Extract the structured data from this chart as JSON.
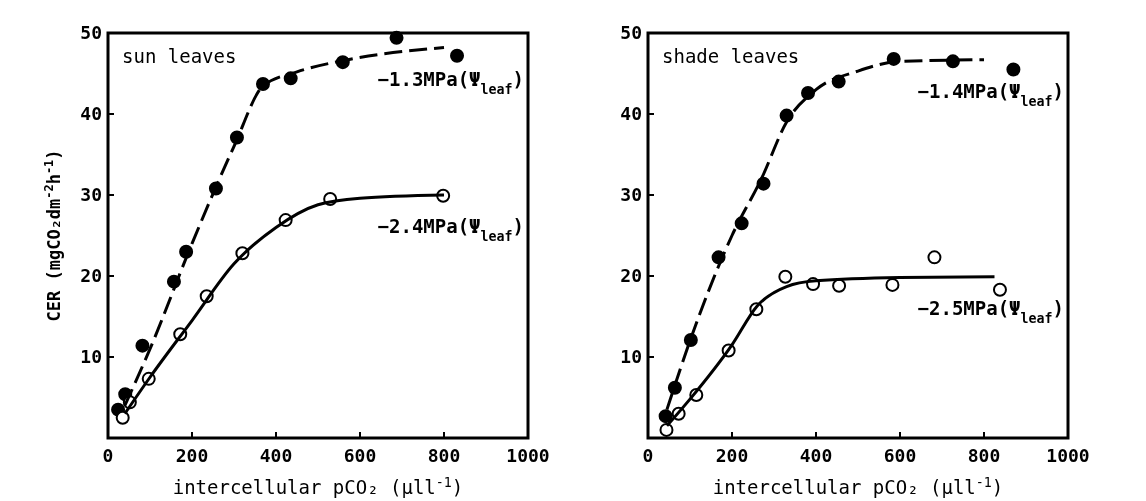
{
  "chart_data": [
    {
      "type": "scatter",
      "title": "sun leaves",
      "xlabel": "intercellular pCO₂ (μll$^{-1}$)",
      "ylabel": "CER (mgCO₂dm$^{-2}$h$^{-1}$)",
      "xlim": [
        0,
        1000
      ],
      "xticks": [
        0,
        200,
        400,
        600,
        800,
        1000
      ],
      "ylim": [
        0,
        50
      ],
      "yticks": [
        10,
        20,
        30,
        40,
        50
      ],
      "grid": false,
      "legend": false,
      "series": [
        {
          "marker": "circle",
          "color": "#000000",
          "x": [
            24,
            41,
            82,
            157,
            186,
            257,
            307,
            369,
            435,
            559,
            687,
            831
          ],
          "values": [
            3.5,
            5.4,
            11.4,
            19.3,
            23.0,
            30.8,
            37.1,
            43.7,
            44.4,
            46.4,
            49.4,
            47.2
          ]
        },
        {
          "marker": "circle",
          "color": "#ffffff",
          "x": [
            35,
            52,
            97,
            172,
            235,
            320,
            423,
            529,
            798
          ],
          "values": [
            2.5,
            4.4,
            7.3,
            12.8,
            17.5,
            22.8,
            26.9,
            29.5,
            29.9
          ]
        },
        {
          "type": "line",
          "name": "−1.3MPa(Ψ$_{leaf}$)",
          "color": "#000000",
          "line_style": "dashed",
          "x": [
            40,
            100,
            200,
            300,
            370,
            450,
            560,
            800
          ],
          "values": [
            4,
            11,
            24,
            36,
            43.5,
            45.2,
            46.6,
            48.2
          ]
        },
        {
          "type": "line",
          "name": "−2.4MPa(Ψ$_{leaf}$)",
          "color": "#000000",
          "line_style": "solid",
          "x": [
            40,
            100,
            200,
            300,
            400,
            500,
            600,
            800
          ],
          "values": [
            3,
            7.5,
            14.5,
            21.5,
            26,
            28.8,
            29.6,
            30.0
          ]
        }
      ]
    },
    {
      "type": "scatter",
      "title": "shade leaves",
      "xlabel": "intercellular pCO₂ (μll$^{-1}$)",
      "xlim": [
        0,
        1000
      ],
      "xticks": [
        0,
        200,
        400,
        600,
        800,
        1000
      ],
      "ylim": [
        0,
        50
      ],
      "yticks": [
        10,
        20,
        30,
        40,
        50
      ],
      "grid": false,
      "legend": false,
      "series": [
        {
          "marker": "circle",
          "color": "#000000",
          "x": [
            42,
            64,
            102,
            168,
            223,
            275,
            330,
            381,
            454,
            585,
            726,
            870
          ],
          "values": [
            2.7,
            6.2,
            12.1,
            22.3,
            26.5,
            31.4,
            39.8,
            42.6,
            44.0,
            46.8,
            46.5,
            45.5
          ]
        },
        {
          "marker": "circle",
          "color": "#ffffff",
          "x": [
            44,
            73,
            115,
            192,
            258,
            327,
            393,
            455,
            582,
            682,
            838
          ],
          "values": [
            1.0,
            3.0,
            5.3,
            10.8,
            15.9,
            19.9,
            19.0,
            18.8,
            18.9,
            22.3,
            18.3
          ]
        },
        {
          "type": "line",
          "name": "−1.4MPa(Ψ$_{leaf}$)",
          "color": "#000000",
          "line_style": "dashed",
          "x": [
            45,
            100,
            200,
            270,
            330,
            400,
            500,
            600,
            800
          ],
          "values": [
            3.5,
            12,
            25,
            32,
            39,
            43,
            45.3,
            46.5,
            46.7
          ]
        },
        {
          "type": "line",
          "name": "−2.5MPa(Ψ$_{leaf}$)",
          "color": "#000000",
          "line_style": "solid",
          "x": [
            45,
            100,
            200,
            260,
            330,
            400,
            600,
            825
          ],
          "values": [
            1.5,
            4.8,
            11.5,
            16.3,
            18.7,
            19.4,
            19.8,
            19.9
          ]
        }
      ]
    }
  ]
}
